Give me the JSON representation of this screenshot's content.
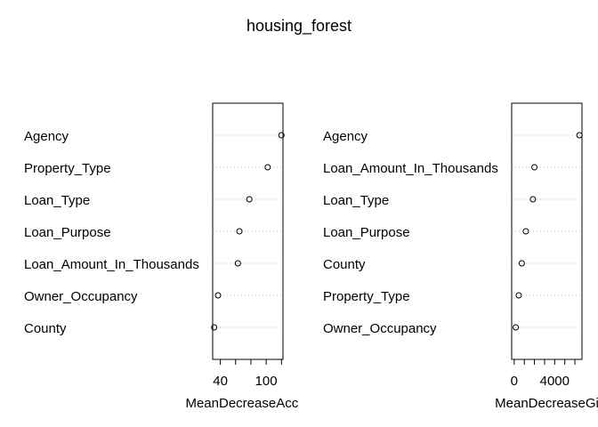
{
  "title": "housing_forest",
  "colors": {
    "grid": "#bebebe",
    "axis": "#000000",
    "point": "#000000",
    "background": "#ffffff"
  },
  "chart_data": [
    {
      "type": "scatter",
      "subtype": "dotchart",
      "xlabel": "MeanDecreaseAccur",
      "xlim": [
        30,
        122
      ],
      "ticks": [
        40,
        60,
        80,
        100,
        120
      ],
      "tick_labels": [
        "40",
        "",
        "",
        "100",
        ""
      ],
      "categories": [
        "Agency",
        "Property_Type",
        "Loan_Type",
        "Loan_Purpose",
        "Loan_Amount_In_Thousands",
        "Owner_Occupancy",
        "County"
      ],
      "values": [
        120,
        102,
        78,
        65,
        63,
        37,
        32
      ],
      "grid": true
    },
    {
      "type": "scatter",
      "subtype": "dotchart",
      "xlabel": "MeanDecreaseGi",
      "xlim": [
        -250,
        6700
      ],
      "ticks": [
        0,
        1000,
        2000,
        3000,
        4000,
        5000,
        6000
      ],
      "tick_labels": [
        "0",
        "",
        "",
        "",
        "4000",
        "",
        ""
      ],
      "categories": [
        "Agency",
        "Loan_Amount_In_Thousands",
        "Loan_Type",
        "Loan_Purpose",
        "County",
        "Property_Type",
        "Owner_Occupancy"
      ],
      "values": [
        6450,
        2000,
        1850,
        1150,
        750,
        450,
        150
      ],
      "grid": true
    }
  ]
}
